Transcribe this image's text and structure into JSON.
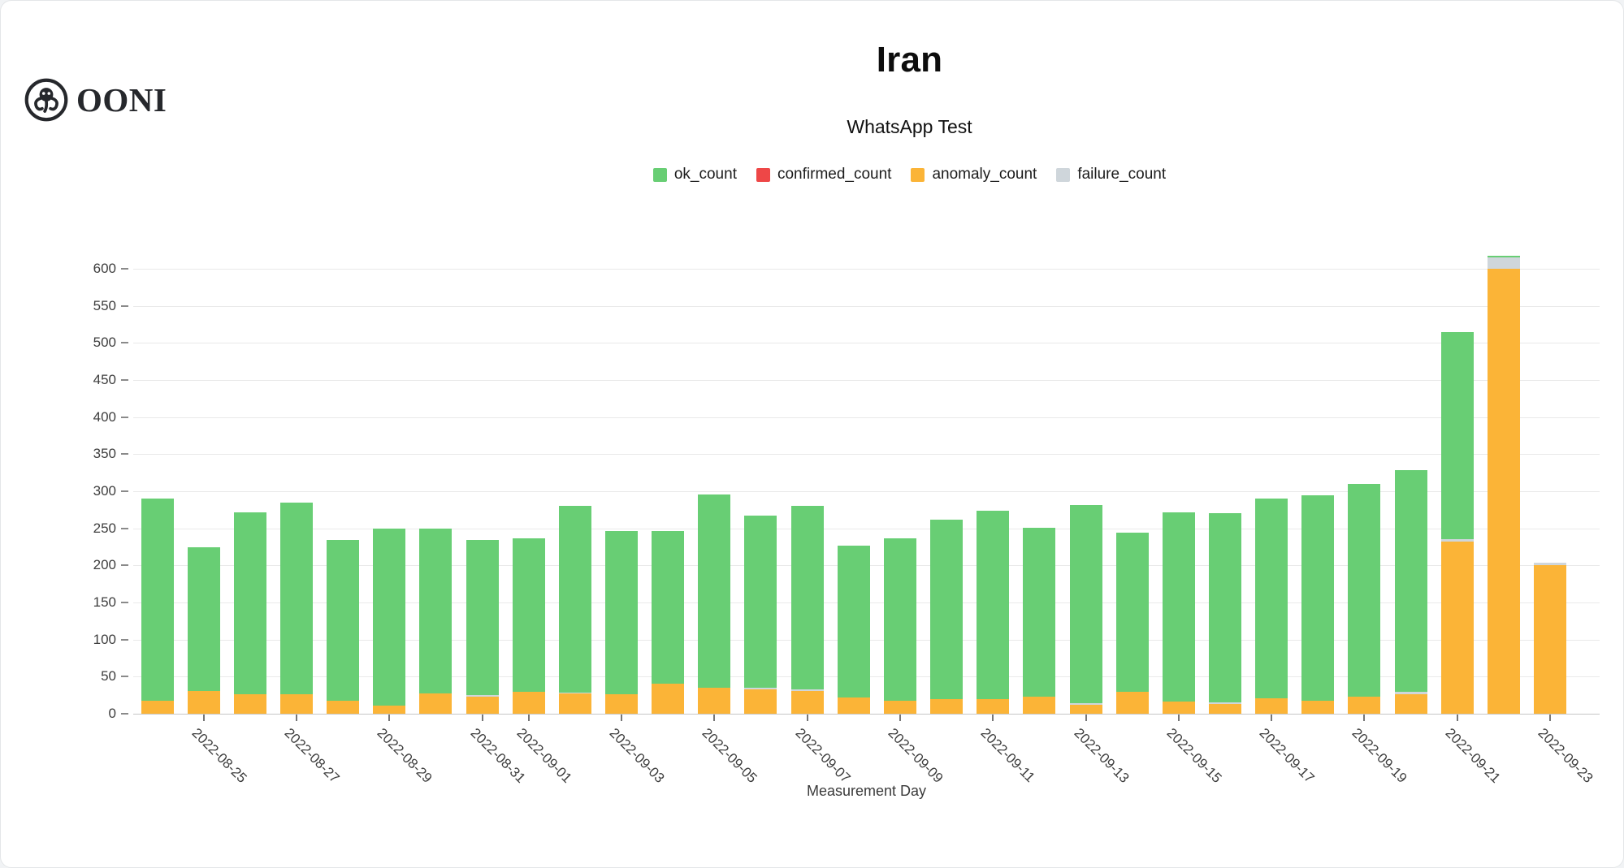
{
  "header": {
    "logo_text": "OONI",
    "title": "Iran",
    "subtitle": "WhatsApp Test"
  },
  "colors": {
    "ok": "#68ce74",
    "confirmed": "#ee4747",
    "anomaly": "#fbb437",
    "failure": "#cfd6db",
    "gridline": "#e9e9e9",
    "axis_line": "#c6c6c6",
    "axis_text": "#3d3d3d"
  },
  "legend": [
    {
      "label": "ok_count",
      "color": "#68ce74"
    },
    {
      "label": "confirmed_count",
      "color": "#ee4747"
    },
    {
      "label": "anomaly_count",
      "color": "#fbb437"
    },
    {
      "label": "failure_count",
      "color": "#cfd6db"
    }
  ],
  "chart_data": {
    "type": "bar",
    "stacked": true,
    "title": "Iran",
    "subtitle": "WhatsApp Test",
    "xlabel": "Measurement Day",
    "ylabel": "",
    "ylim": [
      0,
      600
    ],
    "ytick_step": 50,
    "grid": true,
    "legend_position": "top",
    "stack_order_bottom_to_top": [
      "anomaly_count",
      "confirmed_count",
      "failure_count",
      "ok_count"
    ],
    "categories": [
      "2022-08-24",
      "2022-08-25",
      "2022-08-26",
      "2022-08-27",
      "2022-08-28",
      "2022-08-29",
      "2022-08-30",
      "2022-08-31",
      "2022-09-01",
      "2022-09-02",
      "2022-09-03",
      "2022-09-04",
      "2022-09-05",
      "2022-09-06",
      "2022-09-07",
      "2022-09-08",
      "2022-09-09",
      "2022-09-10",
      "2022-09-11",
      "2022-09-12",
      "2022-09-13",
      "2022-09-14",
      "2022-09-15",
      "2022-09-16",
      "2022-09-17",
      "2022-09-18",
      "2022-09-19",
      "2022-09-20",
      "2022-09-21",
      "2022-09-22",
      "2022-09-23"
    ],
    "series": [
      {
        "name": "ok_count",
        "color": "#68ce74",
        "values": [
          273,
          193,
          246,
          259,
          217,
          239,
          223,
          209,
          207,
          251,
          220,
          206,
          261,
          232,
          247,
          205,
          219,
          242,
          254,
          228,
          267,
          214,
          256,
          255,
          269,
          276,
          287,
          298,
          280,
          2,
          0
        ]
      },
      {
        "name": "confirmed_count",
        "color": "#ee4747",
        "values": [
          0,
          0,
          0,
          0,
          0,
          0,
          0,
          0,
          0,
          0,
          0,
          0,
          0,
          0,
          0,
          0,
          0,
          0,
          0,
          0,
          0,
          0,
          0,
          0,
          0,
          0,
          0,
          0,
          0,
          0,
          0
        ]
      },
      {
        "name": "anomaly_count",
        "color": "#fbb437",
        "values": [
          17,
          31,
          26,
          26,
          17,
          11,
          27,
          23,
          30,
          27,
          26,
          40,
          35,
          33,
          31,
          22,
          18,
          20,
          20,
          23,
          12,
          30,
          16,
          13,
          21,
          18,
          23,
          26,
          232,
          600,
          200
        ]
      },
      {
        "name": "failure_count",
        "color": "#cfd6db",
        "values": [
          0,
          0,
          0,
          0,
          0,
          0,
          0,
          2,
          0,
          2,
          0,
          0,
          0,
          2,
          2,
          0,
          0,
          0,
          0,
          0,
          2,
          0,
          0,
          2,
          0,
          0,
          0,
          4,
          3,
          15,
          4
        ]
      }
    ],
    "x_ticks": [
      {
        "label": "2022-08-25",
        "index": 1
      },
      {
        "label": "2022-08-27",
        "index": 3
      },
      {
        "label": "2022-08-29",
        "index": 5
      },
      {
        "label": "2022-08-31",
        "index": 7
      },
      {
        "label": "2022-09-01",
        "index": 8
      },
      {
        "label": "2022-09-03",
        "index": 10
      },
      {
        "label": "2022-09-05",
        "index": 12
      },
      {
        "label": "2022-09-07",
        "index": 14
      },
      {
        "label": "2022-09-09",
        "index": 16
      },
      {
        "label": "2022-09-11",
        "index": 18
      },
      {
        "label": "2022-09-13",
        "index": 20
      },
      {
        "label": "2022-09-15",
        "index": 22
      },
      {
        "label": "2022-09-17",
        "index": 24
      },
      {
        "label": "2022-09-19",
        "index": 26
      },
      {
        "label": "2022-09-21",
        "index": 28
      },
      {
        "label": "2022-09-23",
        "index": 30
      }
    ]
  }
}
